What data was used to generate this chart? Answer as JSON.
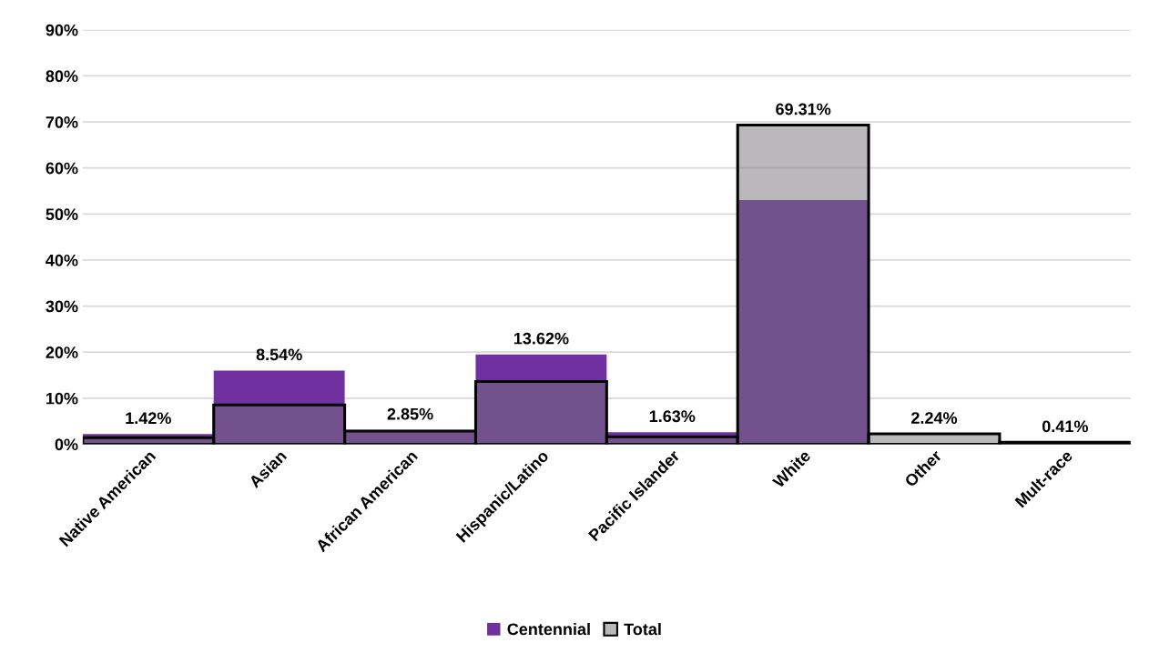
{
  "chart_data": {
    "type": "bar",
    "categories": [
      "Native American",
      "Asian",
      "African American",
      "Hispanic/Latino",
      "Pacific Islander",
      "White",
      "Other",
      "Mult-race"
    ],
    "series": [
      {
        "name": "Centennial",
        "color": "#7030a0",
        "values": [
          2.2,
          16.0,
          3.1,
          19.5,
          2.6,
          53.0,
          null,
          null
        ]
      },
      {
        "name": "Total",
        "color": "#757177",
        "values": [
          1.42,
          8.54,
          2.85,
          13.62,
          1.63,
          69.31,
          2.24,
          0.41
        ],
        "value_labels": [
          "1.42%",
          "8.54%",
          "2.85%",
          "13.62%",
          "1.63%",
          "69.31%",
          "2.24%",
          "0.41%"
        ]
      }
    ],
    "ylim": [
      0,
      90
    ],
    "yticks": [
      {
        "value": 0,
        "label": "0%"
      },
      {
        "value": 10,
        "label": "10%"
      },
      {
        "value": 20,
        "label": "20%"
      },
      {
        "value": 30,
        "label": "30%"
      },
      {
        "value": 40,
        "label": "40%"
      },
      {
        "value": 50,
        "label": "50%"
      },
      {
        "value": 60,
        "label": "60%"
      },
      {
        "value": 70,
        "label": "70%"
      },
      {
        "value": 80,
        "label": "80%"
      },
      {
        "value": 90,
        "label": "90%"
      }
    ],
    "grid": "y",
    "legend": "bottom"
  }
}
